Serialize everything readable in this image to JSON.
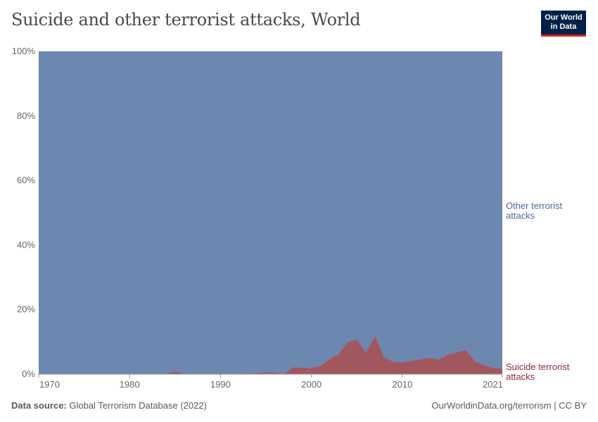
{
  "title": "Suicide and other terrorist attacks, World",
  "logo": {
    "line1": "Our World",
    "line2": "in Data"
  },
  "footer": {
    "source_label": "Data source:",
    "source": " Global Terrorism Database (2022)",
    "right": "OurWorldinData.org/terrorism | CC BY"
  },
  "chart_data": {
    "type": "area",
    "stacked": "relative",
    "x": [
      1970,
      1971,
      1972,
      1973,
      1974,
      1975,
      1976,
      1977,
      1978,
      1979,
      1980,
      1981,
      1982,
      1983,
      1984,
      1985,
      1986,
      1987,
      1988,
      1989,
      1990,
      1991,
      1992,
      1993,
      1994,
      1995,
      1996,
      1997,
      1998,
      1999,
      2000,
      2001,
      2002,
      2003,
      2004,
      2005,
      2006,
      2007,
      2008,
      2009,
      2010,
      2011,
      2012,
      2013,
      2014,
      2015,
      2016,
      2017,
      2018,
      2019,
      2020,
      2021
    ],
    "series": [
      {
        "name": "Suicide terrorist attacks",
        "color": "#a2575f",
        "values": [
          0,
          0,
          0,
          0,
          0,
          0,
          0,
          0,
          0,
          0,
          0,
          0.1,
          0.1,
          0.2,
          0.1,
          0.8,
          0.2,
          0.1,
          0.2,
          0.1,
          0.2,
          0.1,
          0.1,
          0.2,
          0.3,
          0.6,
          0.5,
          0.1,
          2.1,
          2.0,
          1.8,
          2.6,
          4.6,
          6.2,
          10.0,
          10.6,
          6.6,
          11.7,
          5.2,
          3.8,
          3.6,
          4.1,
          4.6,
          5.1,
          4.5,
          6.0,
          6.8,
          7.5,
          3.9,
          2.8,
          1.9,
          1.6
        ]
      },
      {
        "name": "Other terrorist attacks",
        "color": "#6d88b0"
      }
    ],
    "yticks": [
      "0%",
      "20%",
      "40%",
      "60%",
      "80%",
      "100%"
    ],
    "xticks": [
      "1970",
      "1980",
      "1990",
      "2000",
      "2010",
      "2021"
    ],
    "ylim": [
      0,
      100
    ],
    "grid": "horizontal dashed",
    "legend": "right, inline labels"
  }
}
